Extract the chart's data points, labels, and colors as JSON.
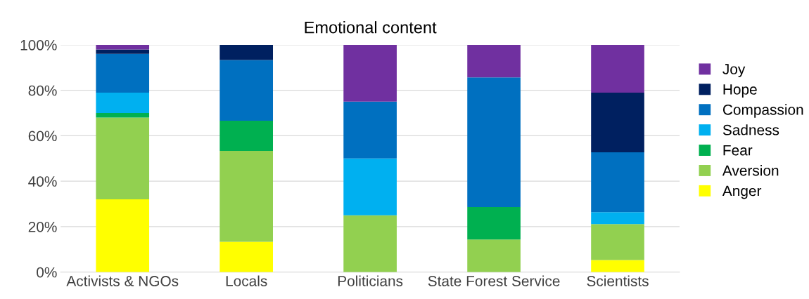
{
  "chart_data": {
    "type": "bar",
    "title": "Emotional content",
    "stacked": true,
    "categories": [
      "Activists & NGOs",
      "Locals",
      "Politicians",
      "State Forest Service",
      "Scientists"
    ],
    "series": [
      {
        "name": "Anger",
        "color": "#ffff00",
        "values": [
          32,
          13.3,
          0,
          0,
          5.3
        ]
      },
      {
        "name": "Aversion",
        "color": "#92d050",
        "values": [
          36,
          40,
          25,
          14.3,
          15.8
        ]
      },
      {
        "name": "Fear",
        "color": "#00b050",
        "values": [
          2,
          13.3,
          0,
          14.3,
          0
        ]
      },
      {
        "name": "Sadness",
        "color": "#00b0f0",
        "values": [
          9,
          0,
          25,
          0,
          5.3
        ]
      },
      {
        "name": "Compassion",
        "color": "#0070c0",
        "values": [
          17,
          26.7,
          25,
          57.1,
          26.3
        ]
      },
      {
        "name": "Hope",
        "color": "#002060",
        "values": [
          2,
          6.7,
          0,
          0,
          26.3
        ]
      },
      {
        "name": "Joy",
        "color": "#7030a0",
        "values": [
          2,
          0,
          25,
          14.3,
          21
        ]
      }
    ],
    "ylim": [
      0,
      100
    ],
    "yticks": [
      {
        "value": 0,
        "label": "0%"
      },
      {
        "value": 20,
        "label": "20%"
      },
      {
        "value": 40,
        "label": "40%"
      },
      {
        "value": 60,
        "label": "60%"
      },
      {
        "value": 80,
        "label": "80%"
      },
      {
        "value": 100,
        "label": "100%"
      }
    ],
    "grid": "y",
    "legend": "right"
  }
}
